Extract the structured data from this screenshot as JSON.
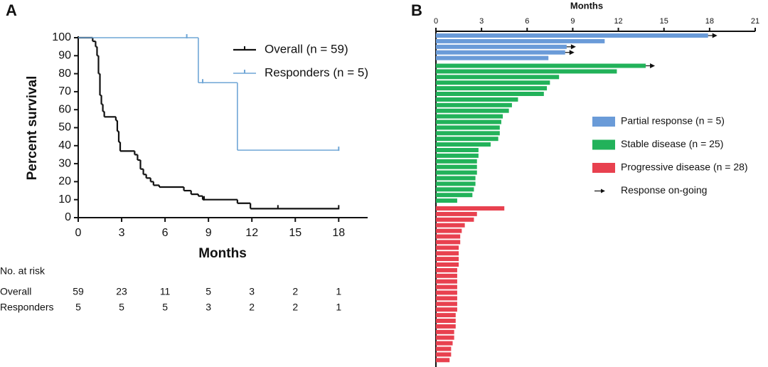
{
  "chart_data": [
    {
      "type": "line",
      "panel": "A",
      "step": true,
      "xlabel": "Months",
      "ylabel": "Percent survival",
      "xlim": [
        0,
        20
      ],
      "xticks": [
        0,
        3,
        6,
        9,
        12,
        15,
        18
      ],
      "ylim": [
        0,
        100
      ],
      "yticks": [
        0,
        10,
        20,
        30,
        40,
        50,
        60,
        70,
        80,
        90,
        100
      ],
      "legend": "upper right",
      "series": [
        {
          "name": "Overall (n = 59)",
          "color": "#111111",
          "x": [
            0,
            1.0,
            1.2,
            1.3,
            1.4,
            1.5,
            1.6,
            1.7,
            1.8,
            2.6,
            2.7,
            2.8,
            2.9,
            3.9,
            4.1,
            4.3,
            4.5,
            4.7,
            5.0,
            5.2,
            5.6,
            7.3,
            7.8,
            8.3,
            8.6,
            11.0,
            11.9,
            18.0
          ],
          "values": [
            100,
            98,
            95,
            90,
            80,
            68,
            63,
            59,
            56,
            54,
            48,
            42,
            37,
            35,
            32,
            27,
            24,
            22,
            20,
            18,
            17,
            15,
            13,
            12,
            10,
            8,
            5,
            5
          ],
          "censor_x": [
            8.7,
            13.8,
            18.0
          ],
          "censor_values": [
            10,
            5,
            5
          ]
        },
        {
          "name": "Responders (n = 5)",
          "color": "#6fa6d6",
          "x": [
            0,
            8.3,
            11.0,
            18.0
          ],
          "values": [
            100,
            75,
            37.5,
            37.5
          ],
          "censor_x": [
            7.5,
            8.6,
            18.0
          ],
          "censor_values": [
            100,
            75,
            37.5
          ]
        }
      ],
      "risk_table": {
        "title": "No. at risk",
        "rows": [
          {
            "name": "Overall",
            "values": [
              59,
              23,
              11,
              5,
              3,
              2,
              1
            ]
          },
          {
            "name": "Responders",
            "values": [
              5,
              5,
              5,
              3,
              2,
              2,
              1
            ]
          }
        ]
      }
    },
    {
      "type": "bar",
      "panel": "B",
      "orientation": "horizontal",
      "xlabel": "Months",
      "xlim": [
        0,
        21
      ],
      "xticks": [
        0,
        3,
        6,
        9,
        12,
        15,
        18,
        21
      ],
      "ongoing_label": "Response on-going",
      "series": [
        {
          "name": "Partial response (n = 5)",
          "color": "#6a9bd8",
          "values": [
            17.9,
            11.1,
            8.6,
            8.5,
            7.4
          ],
          "ongoing": [
            true,
            false,
            true,
            true,
            false
          ]
        },
        {
          "name": "Stable disease (n = 25)",
          "color": "#22b25a",
          "values": [
            13.8,
            11.9,
            8.1,
            7.5,
            7.3,
            7.1,
            5.4,
            5.0,
            4.8,
            4.4,
            4.3,
            4.2,
            4.2,
            4.1,
            3.6,
            2.8,
            2.8,
            2.7,
            2.7,
            2.7,
            2.6,
            2.6,
            2.5,
            2.4,
            1.4
          ],
          "ongoing": [
            true,
            false,
            false,
            false,
            false,
            false,
            false,
            false,
            false,
            false,
            false,
            false,
            false,
            false,
            false,
            false,
            false,
            false,
            false,
            false,
            false,
            false,
            false,
            false,
            false
          ]
        },
        {
          "name": "Progressive disease (n = 28)",
          "color": "#e8414f",
          "values": [
            4.5,
            2.7,
            2.5,
            1.9,
            1.7,
            1.6,
            1.6,
            1.5,
            1.5,
            1.5,
            1.5,
            1.4,
            1.4,
            1.4,
            1.4,
            1.4,
            1.4,
            1.4,
            1.4,
            1.3,
            1.3,
            1.3,
            1.2,
            1.2,
            1.1,
            1.0,
            1.0,
            0.9
          ],
          "ongoing": [
            false,
            false,
            false,
            false,
            false,
            false,
            false,
            false,
            false,
            false,
            false,
            false,
            false,
            false,
            false,
            false,
            false,
            false,
            false,
            false,
            false,
            false,
            false,
            false,
            false,
            false,
            false,
            false
          ]
        }
      ]
    }
  ]
}
